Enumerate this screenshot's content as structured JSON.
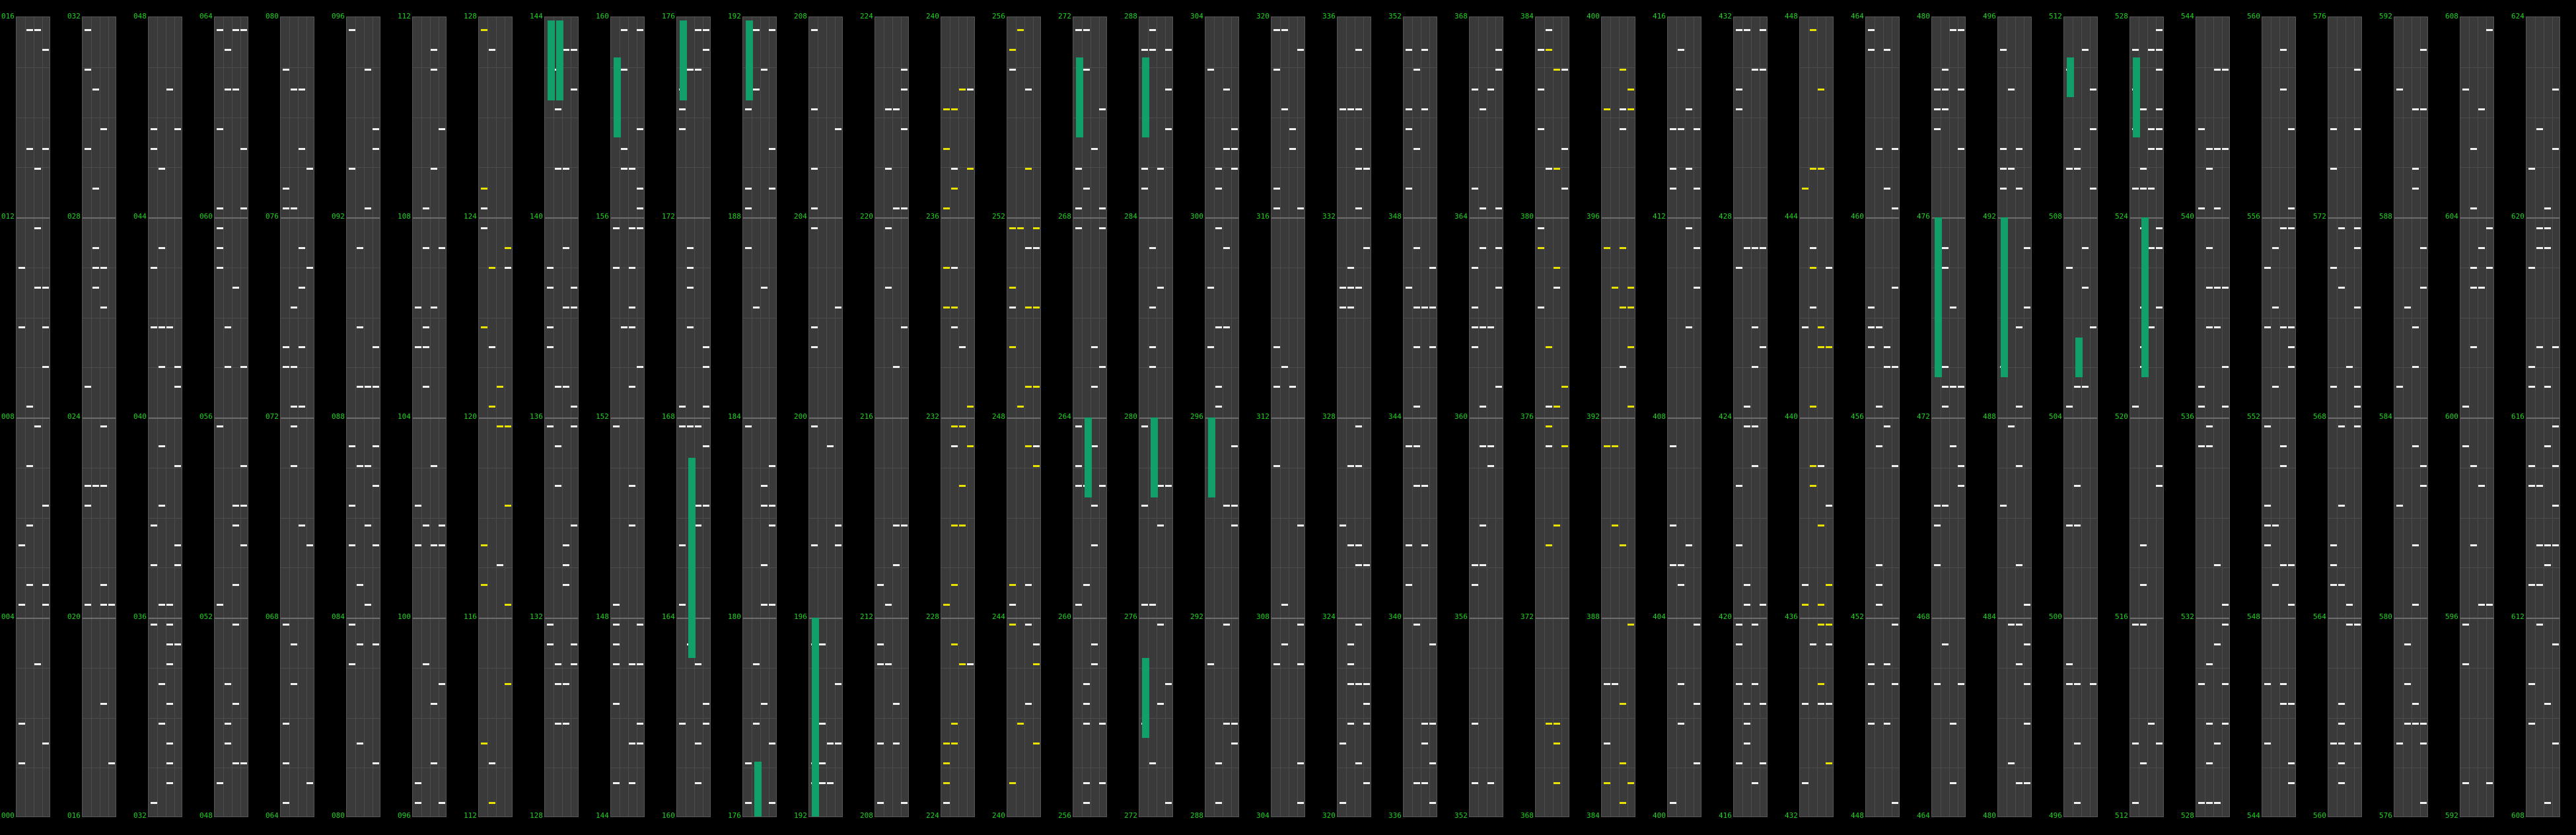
{
  "app": "Pattern grid",
  "colors": {
    "background": "#000000",
    "column": "#3a3a3a",
    "grid": "#4c4c4c",
    "label": "#1fd31f",
    "note_white": "#f2f2f2",
    "note_yellow": "#e8e000",
    "active_bar": "#12a06a"
  },
  "columns": [
    {
      "labels": [
        "016",
        "012",
        "008",
        "004",
        "000"
      ],
      "yellow": false,
      "notes": [],
      "bars": []
    },
    {
      "labels": [
        "032",
        "028",
        "024",
        "020",
        "016"
      ],
      "yellow": false,
      "notes": [],
      "bars": []
    },
    {
      "labels": [
        "048",
        "044",
        "040",
        "036",
        "032"
      ],
      "yellow": false,
      "notes": [],
      "bars": []
    },
    {
      "labels": [
        "064",
        "060",
        "056",
        "052",
        "048"
      ],
      "yellow": false,
      "notes": [],
      "bars": []
    },
    {
      "labels": [
        "080",
        "076",
        "072",
        "068",
        "064"
      ],
      "yellow": false,
      "notes": [],
      "bars": []
    },
    {
      "labels": [
        "096",
        "092",
        "088",
        "084",
        "080"
      ],
      "yellow": false,
      "notes": [],
      "bars": []
    },
    {
      "labels": [
        "112",
        "108",
        "104",
        "100",
        "096"
      ],
      "yellow": false,
      "notes": [],
      "bars": []
    },
    {
      "labels": [
        "128",
        "124",
        "120",
        "116",
        "112"
      ],
      "yellow": true,
      "notes": [],
      "bars": []
    },
    {
      "labels": [
        "144",
        "140",
        "136",
        "132",
        "128"
      ],
      "yellow": false,
      "notes": [],
      "bars": [
        [
          0.004,
          0.1
        ],
        [
          0.004,
          0.1
        ]
      ]
    },
    {
      "labels": [
        "160",
        "156",
        "152",
        "148",
        "144"
      ],
      "yellow": false,
      "notes": [],
      "bars": [
        [
          0.05,
          0.1
        ]
      ]
    },
    {
      "labels": [
        "176",
        "172",
        "168",
        "164",
        "160"
      ],
      "yellow": false,
      "notes": [],
      "bars": [
        [
          0.004,
          0.1
        ],
        [
          0.55,
          0.25
        ]
      ]
    },
    {
      "labels": [
        "192",
        "188",
        "184",
        "180",
        "176"
      ],
      "yellow": false,
      "notes": [],
      "bars": [
        [
          0.004,
          0.1
        ],
        [
          0.93,
          0.07
        ]
      ]
    },
    {
      "labels": [
        "208",
        "204",
        "200",
        "196",
        "192"
      ],
      "yellow": false,
      "notes": [],
      "bars": [
        [
          0.75,
          0.25
        ]
      ]
    },
    {
      "labels": [
        "224",
        "220",
        "216",
        "212",
        "208"
      ],
      "yellow": false,
      "notes": [],
      "bars": []
    },
    {
      "labels": [
        "240",
        "236",
        "232",
        "228",
        "224"
      ],
      "yellow": true,
      "notes": [],
      "bars": []
    },
    {
      "labels": [
        "256",
        "252",
        "248",
        "244",
        "240"
      ],
      "yellow": true,
      "notes": [],
      "bars": []
    },
    {
      "labels": [
        "272",
        "268",
        "264",
        "260",
        "256"
      ],
      "yellow": false,
      "notes": [],
      "bars": [
        [
          0.05,
          0.1
        ],
        [
          0.5,
          0.1
        ]
      ]
    },
    {
      "labels": [
        "288",
        "284",
        "280",
        "276",
        "272"
      ],
      "yellow": false,
      "notes": [],
      "bars": [
        [
          0.05,
          0.1
        ],
        [
          0.5,
          0.1
        ],
        [
          0.8,
          0.1
        ]
      ]
    },
    {
      "labels": [
        "304",
        "300",
        "296",
        "292",
        "288"
      ],
      "yellow": false,
      "notes": [],
      "bars": [
        [
          0.5,
          0.1
        ]
      ]
    },
    {
      "labels": [
        "320",
        "316",
        "312",
        "308",
        "304"
      ],
      "yellow": false,
      "notes": [],
      "bars": []
    },
    {
      "labels": [
        "336",
        "332",
        "328",
        "324",
        "320"
      ],
      "yellow": false,
      "notes": [],
      "bars": []
    },
    {
      "labels": [
        "352",
        "348",
        "344",
        "340",
        "336"
      ],
      "yellow": false,
      "notes": [],
      "bars": []
    },
    {
      "labels": [
        "368",
        "364",
        "360",
        "356",
        "352"
      ],
      "yellow": false,
      "notes": [],
      "bars": []
    },
    {
      "labels": [
        "384",
        "380",
        "376",
        "372",
        "368"
      ],
      "yellow": true,
      "notes": [],
      "bars": []
    },
    {
      "labels": [
        "400",
        "396",
        "392",
        "388",
        "384"
      ],
      "yellow": true,
      "notes": [],
      "bars": []
    },
    {
      "labels": [
        "416",
        "412",
        "408",
        "404",
        "400"
      ],
      "yellow": false,
      "notes": [],
      "bars": []
    },
    {
      "labels": [
        "432",
        "428",
        "424",
        "420",
        "416"
      ],
      "yellow": false,
      "notes": [],
      "bars": []
    },
    {
      "labels": [
        "448",
        "444",
        "440",
        "436",
        "432"
      ],
      "yellow": true,
      "notes": [],
      "bars": []
    },
    {
      "labels": [
        "464",
        "460",
        "456",
        "452",
        "448"
      ],
      "yellow": false,
      "notes": [],
      "bars": []
    },
    {
      "labels": [
        "480",
        "476",
        "472",
        "468",
        "464"
      ],
      "yellow": false,
      "notes": [],
      "bars": [
        [
          0.25,
          0.2
        ]
      ]
    },
    {
      "labels": [
        "496",
        "492",
        "488",
        "484",
        "480"
      ],
      "yellow": false,
      "notes": [],
      "bars": [
        [
          0.25,
          0.2
        ]
      ]
    },
    {
      "labels": [
        "512",
        "508",
        "504",
        "500",
        "496"
      ],
      "yellow": false,
      "notes": [],
      "bars": [
        [
          0.05,
          0.05
        ],
        [
          0.4,
          0.05
        ]
      ]
    },
    {
      "labels": [
        "528",
        "524",
        "520",
        "516",
        "512"
      ],
      "yellow": false,
      "notes": [],
      "bars": [
        [
          0.05,
          0.1
        ],
        [
          0.25,
          0.2
        ]
      ]
    },
    {
      "labels": [
        "544",
        "540",
        "536",
        "532",
        "528"
      ],
      "yellow": false,
      "notes": [],
      "bars": []
    },
    {
      "labels": [
        "560",
        "556",
        "552",
        "548",
        "544"
      ],
      "yellow": false,
      "notes": [],
      "bars": []
    },
    {
      "labels": [
        "576",
        "572",
        "568",
        "564",
        "560"
      ],
      "yellow": false,
      "notes": [],
      "bars": []
    },
    {
      "labels": [
        "592",
        "588",
        "584",
        "580",
        "576"
      ],
      "yellow": false,
      "notes": [],
      "bars": []
    },
    {
      "labels": [
        "608",
        "604",
        "600",
        "596",
        "592"
      ],
      "yellow": false,
      "notes": [],
      "bars": []
    },
    {
      "labels": [
        "624",
        "620",
        "616",
        "612",
        "608"
      ],
      "yellow": false,
      "notes": [],
      "bars": []
    }
  ]
}
